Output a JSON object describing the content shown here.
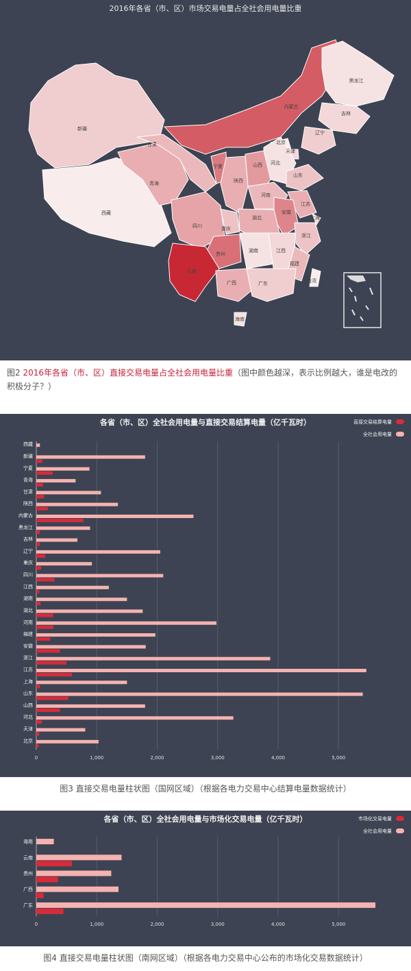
{
  "map": {
    "title": "2016年各省（市、区）市场交易电量占全社会用电量比重",
    "labels": [
      {
        "name": "新疆"
      },
      {
        "name": "西藏"
      },
      {
        "name": "青海"
      },
      {
        "name": "甘肃"
      },
      {
        "name": "内蒙古"
      },
      {
        "name": "黑龙江"
      },
      {
        "name": "吉林"
      },
      {
        "name": "辽宁"
      },
      {
        "name": "北京"
      },
      {
        "name": "天津"
      },
      {
        "name": "河北"
      },
      {
        "name": "山西"
      },
      {
        "name": "山东"
      },
      {
        "name": "宁夏"
      },
      {
        "name": "陕西"
      },
      {
        "name": "河南"
      },
      {
        "name": "江苏"
      },
      {
        "name": "安徽"
      },
      {
        "name": "上海"
      },
      {
        "name": "四川"
      },
      {
        "name": "重庆"
      },
      {
        "name": "湖北"
      },
      {
        "name": "浙江"
      },
      {
        "name": "贵州"
      },
      {
        "name": "湖南"
      },
      {
        "name": "江西"
      },
      {
        "name": "福建"
      },
      {
        "name": "云南"
      },
      {
        "name": "广西"
      },
      {
        "name": "广东"
      },
      {
        "name": "台湾"
      },
      {
        "name": "海南"
      }
    ],
    "intensity": {
      "新疆": 0.15,
      "西藏": 0.0,
      "青海": 0.3,
      "甘肃": 0.25,
      "内蒙古": 0.7,
      "黑龙江": 0.05,
      "吉林": 0.1,
      "辽宁": 0.15,
      "北京": 0.0,
      "天津": 0.1,
      "河北": 0.05,
      "山西": 0.4,
      "山东": 0.2,
      "宁夏": 0.55,
      "陕西": 0.3,
      "河南": 0.25,
      "江苏": 0.3,
      "安徽": 0.5,
      "上海": 0.1,
      "四川": 0.35,
      "重庆": 0.2,
      "湖北": 0.3,
      "浙江": 0.2,
      "贵州": 0.6,
      "湖南": 0.05,
      "江西": 0.1,
      "福建": 0.25,
      "云南": 0.95,
      "广西": 0.3,
      "广东": 0.15,
      "台湾": 0.0,
      "海南": 0.05
    }
  },
  "caption2": {
    "prefix": "图2 ",
    "highlight": "2016年各省（市、区）直接交易电量占全社会用电量比重",
    "rest": "（图中颜色越深，表示比例越大，谁是电改的积极分子？）"
  },
  "chart_data": [
    {
      "type": "bar",
      "orientation": "horizontal",
      "title": "各省（市、区）全社会用电量与直接交易结算电量（亿千瓦时）",
      "legend_position": "top-right",
      "categories": [
        "西藏",
        "新疆",
        "宁夏",
        "青海",
        "甘肃",
        "陕西",
        "内蒙古",
        "黑龙江",
        "吉林",
        "辽宁",
        "重庆",
        "四川",
        "江西",
        "湖南",
        "湖北",
        "河南",
        "福建",
        "安徽",
        "浙江",
        "江苏",
        "上海",
        "山东",
        "山西",
        "河北",
        "天津",
        "北京"
      ],
      "series": [
        {
          "name": "全社会用电量",
          "color": "#f4b3b0",
          "values": [
            60,
            1800,
            880,
            650,
            1070,
            1350,
            2600,
            890,
            680,
            2050,
            920,
            2100,
            1200,
            1500,
            1760,
            2980,
            1970,
            1810,
            3870,
            5460,
            1500,
            5400,
            1800,
            3260,
            810,
            1030
          ]
        },
        {
          "name": "直接交易结算电量",
          "color": "#d92a3a",
          "values": [
            0,
            100,
            270,
            110,
            130,
            190,
            780,
            60,
            60,
            150,
            80,
            300,
            50,
            70,
            280,
            280,
            230,
            390,
            500,
            590,
            60,
            530,
            390,
            90,
            50,
            40
          ]
        }
      ],
      "xticks": [
        "0",
        "1,000",
        "2,000",
        "3,000",
        "4,000",
        "5,000"
      ],
      "xlim": [
        0,
        5700
      ],
      "grid": true
    },
    {
      "type": "bar",
      "orientation": "horizontal",
      "title": "各省（市、区）全社会用电量与市场化交易电量（亿千瓦时）",
      "legend_position": "top-right",
      "categories": [
        "海南",
        "云南",
        "贵州",
        "广西",
        "广东"
      ],
      "series": [
        {
          "name": "全社会用电量",
          "color": "#f4b3b0",
          "values": [
            290,
            1410,
            1240,
            1360,
            5610
          ]
        },
        {
          "name": "市场化交易电量",
          "color": "#d92a3a",
          "values": [
            0,
            590,
            360,
            120,
            450
          ]
        }
      ],
      "xticks": [
        "0",
        "1,000",
        "2,000",
        "3,000",
        "4,000",
        "5,000"
      ],
      "xlim": [
        0,
        5700
      ],
      "grid": true
    }
  ],
  "caption3": "图3 直接交易电量柱状图（国网区域）（根据各电力交易中心结算电量数据统计）",
  "caption4": "图4 直接交易电量柱状图（南网区域）（根据各电力交易中心公布的市场化交易数据统计）"
}
